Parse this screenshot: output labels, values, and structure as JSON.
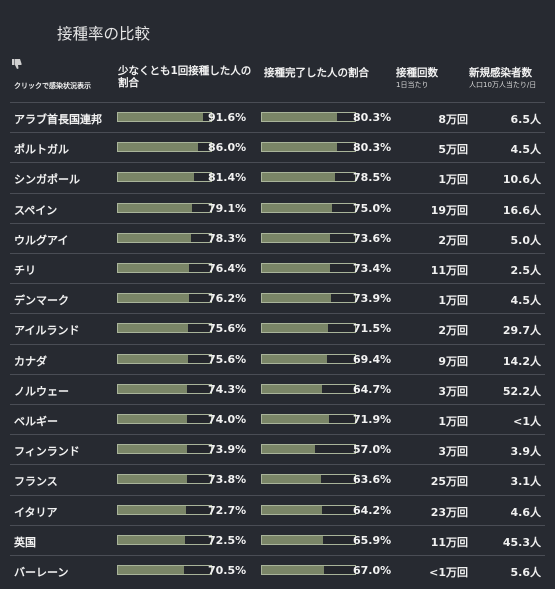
{
  "title": "接種率の比較",
  "header": {
    "sort_note": "クリックで感染状況表示",
    "col_one_dose": "少なくとも1回接種した人の割合",
    "col_full": "接種完了した人の割合",
    "col_doses": "接種回数",
    "col_doses_sub": "1日当たり",
    "col_cases": "新規感染者数",
    "col_cases_sub": "人口10万人当たり/日"
  },
  "icons": {
    "sort": "thumbs-down-icon"
  },
  "colors": {
    "bar_fill": "#7a8567",
    "bar_border": "#a9b49a",
    "background": "#272a31"
  },
  "rows": [
    {
      "country": "アラブ首長国連邦",
      "one_dose": 91.6,
      "one_dose_label": "91.6%",
      "full": 80.3,
      "full_label": "80.3%",
      "doses": "8万回",
      "cases": "6.5人"
    },
    {
      "country": "ポルトガル",
      "one_dose": 86.0,
      "one_dose_label": "86.0%",
      "full": 80.3,
      "full_label": "80.3%",
      "doses": "5万回",
      "cases": "4.5人"
    },
    {
      "country": "シンガポール",
      "one_dose": 81.4,
      "one_dose_label": "81.4%",
      "full": 78.5,
      "full_label": "78.5%",
      "doses": "1万回",
      "cases": "10.6人"
    },
    {
      "country": "スペイン",
      "one_dose": 79.1,
      "one_dose_label": "79.1%",
      "full": 75.0,
      "full_label": "75.0%",
      "doses": "19万回",
      "cases": "16.6人"
    },
    {
      "country": "ウルグアイ",
      "one_dose": 78.3,
      "one_dose_label": "78.3%",
      "full": 73.6,
      "full_label": "73.6%",
      "doses": "2万回",
      "cases": "5.0人"
    },
    {
      "country": "チリ",
      "one_dose": 76.4,
      "one_dose_label": "76.4%",
      "full": 73.4,
      "full_label": "73.4%",
      "doses": "11万回",
      "cases": "2.5人"
    },
    {
      "country": "デンマーク",
      "one_dose": 76.2,
      "one_dose_label": "76.2%",
      "full": 73.9,
      "full_label": "73.9%",
      "doses": "1万回",
      "cases": "4.5人"
    },
    {
      "country": "アイルランド",
      "one_dose": 75.6,
      "one_dose_label": "75.6%",
      "full": 71.5,
      "full_label": "71.5%",
      "doses": "2万回",
      "cases": "29.7人"
    },
    {
      "country": "カナダ",
      "one_dose": 75.6,
      "one_dose_label": "75.6%",
      "full": 69.4,
      "full_label": "69.4%",
      "doses": "9万回",
      "cases": "14.2人"
    },
    {
      "country": "ノルウェー",
      "one_dose": 74.3,
      "one_dose_label": "74.3%",
      "full": 64.7,
      "full_label": "64.7%",
      "doses": "3万回",
      "cases": "52.2人"
    },
    {
      "country": "ベルギー",
      "one_dose": 74.0,
      "one_dose_label": "74.0%",
      "full": 71.9,
      "full_label": "71.9%",
      "doses": "1万回",
      "cases": "<1人"
    },
    {
      "country": "フィンランド",
      "one_dose": 73.9,
      "one_dose_label": "73.9%",
      "full": 57.0,
      "full_label": "57.0%",
      "doses": "3万回",
      "cases": "3.9人"
    },
    {
      "country": "フランス",
      "one_dose": 73.8,
      "one_dose_label": "73.8%",
      "full": 63.6,
      "full_label": "63.6%",
      "doses": "25万回",
      "cases": "3.1人"
    },
    {
      "country": "イタリア",
      "one_dose": 72.7,
      "one_dose_label": "72.7%",
      "full": 64.2,
      "full_label": "64.2%",
      "doses": "23万回",
      "cases": "4.6人"
    },
    {
      "country": "英国",
      "one_dose": 72.5,
      "one_dose_label": "72.5%",
      "full": 65.9,
      "full_label": "65.9%",
      "doses": "11万回",
      "cases": "45.3人"
    },
    {
      "country": "バーレーン",
      "one_dose": 70.5,
      "one_dose_label": "70.5%",
      "full": 67.0,
      "full_label": "67.0%",
      "doses": "<1万回",
      "cases": "5.6人"
    }
  ]
}
